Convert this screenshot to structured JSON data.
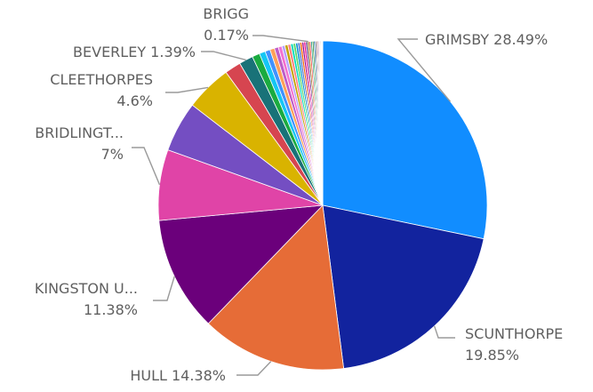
{
  "chart_data": {
    "type": "pie",
    "title": "",
    "legend": "none",
    "start_angle_deg": 0,
    "direction": "clockwise",
    "slices": [
      {
        "label": "GRIMSBY",
        "value": 28.49,
        "value_label": "28.49%",
        "color": "#118DFF",
        "label_lines": [
          "GRIMSBY 28.49%"
        ]
      },
      {
        "label": "SCUNTHORPE",
        "value": 19.85,
        "value_label": "19.85%",
        "color": "#12239E",
        "label_lines": [
          "SCUNTHORPE",
          "19.85%"
        ]
      },
      {
        "label": "HULL",
        "value": 14.38,
        "value_label": "14.38%",
        "color": "#E66C37",
        "label_lines": [
          "HULL 14.38%"
        ]
      },
      {
        "label": "KINGSTON U...",
        "value": 11.38,
        "value_label": "11.38%",
        "color": "#6B007B",
        "label_lines": [
          "KINGSTON U...",
          "11.38%"
        ]
      },
      {
        "label": "BRIDLINGT...",
        "value": 7,
        "value_label": "7%",
        "color": "#E044A7",
        "label_lines": [
          "BRIDLINGT...",
          "7%"
        ]
      },
      {
        "label": "",
        "value": 5.0,
        "color": "#744EC2"
      },
      {
        "label": "CLEETHORPES",
        "value": 4.6,
        "value_label": "4.6%",
        "color": "#D9B300",
        "label_lines": [
          "CLEETHORPES",
          "4.6%"
        ]
      },
      {
        "label": "",
        "value": 1.6,
        "color": "#D64550"
      },
      {
        "label": "BEVERLEY",
        "value": 1.39,
        "value_label": "1.39%",
        "color": "#197278",
        "label_lines": [
          "BEVERLEY 1.39%"
        ]
      },
      {
        "label": "",
        "value": 0.75,
        "color": "#1AAB40"
      },
      {
        "label": "",
        "value": 0.6,
        "color": "#15C6F4"
      },
      {
        "label": "",
        "value": 0.5,
        "color": "#4092FF"
      },
      {
        "label": "",
        "value": 0.45,
        "color": "#FFA058"
      },
      {
        "label": "",
        "value": 0.4,
        "color": "#BE5DC9"
      },
      {
        "label": "",
        "value": 0.35,
        "color": "#F472D0"
      },
      {
        "label": "",
        "value": 0.3,
        "color": "#B5A1FF"
      },
      {
        "label": "",
        "value": 0.3,
        "color": "#C4A200"
      },
      {
        "label": "",
        "value": 0.28,
        "color": "#FF8080"
      },
      {
        "label": "",
        "value": 0.25,
        "color": "#00DBBC"
      },
      {
        "label": "",
        "value": 0.24,
        "color": "#5BD667"
      },
      {
        "label": "",
        "value": 0.22,
        "color": "#0091D5"
      },
      {
        "label": "",
        "value": 0.2,
        "color": "#4668C5"
      },
      {
        "label": "",
        "value": 0.2,
        "color": "#FF6300"
      },
      {
        "label": "",
        "value": 0.19,
        "color": "#99008A"
      },
      {
        "label": "",
        "value": 0.18,
        "color": "#EC008C"
      },
      {
        "label": "",
        "value": 0.18,
        "color": "#533285"
      },
      {
        "label": "BRIGG",
        "value": 0.17,
        "value_label": "0.17%",
        "color": "#99700A",
        "label_lines": [
          "BRIGG",
          "0.17%"
        ]
      },
      {
        "label": "",
        "value": 0.16,
        "color": "#FF4141"
      },
      {
        "label": "",
        "value": 0.15,
        "color": "#1F9A85"
      },
      {
        "label": "",
        "value": 0.14,
        "color": "#25891C"
      },
      {
        "label": "",
        "value": 0.13,
        "color": "#0057A2"
      },
      {
        "label": "",
        "value": 0.12,
        "color": "#002050"
      },
      {
        "label": "",
        "value": 0.1,
        "color": "#C94F0F"
      },
      {
        "label": "",
        "value": 0.1,
        "color": "#450F54"
      },
      {
        "label": "",
        "value": 0.09,
        "color": "#B60064"
      },
      {
        "label": "",
        "value": 0.08,
        "color": "#34124F"
      },
      {
        "label": "",
        "value": 0.08,
        "color": "#6A1C00"
      },
      {
        "label": "",
        "value": 0.07,
        "color": "#5C6F80"
      },
      {
        "label": "",
        "value": 0.06,
        "color": "#8C8C8C"
      },
      {
        "label": "",
        "value": 0.05,
        "color": "#C7C7C7"
      }
    ]
  }
}
